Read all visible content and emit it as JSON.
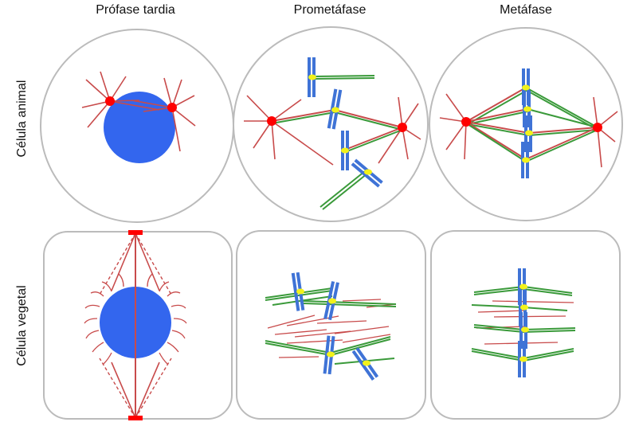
{
  "columns": [
    "Prófase tardia",
    "Prometáfase",
    "Metáfase"
  ],
  "rows": [
    "Célula animal",
    "Célula vegetal"
  ],
  "colors": {
    "nucleus": "#3366ee",
    "centrosome": "#ff0000",
    "microtubule_red": "#c84b4b",
    "microtubule_green": "#3a9a3a",
    "chromosome": "#3f73d6",
    "kinetochore": "#f2f21a",
    "outline": "#bbbbbb"
  }
}
